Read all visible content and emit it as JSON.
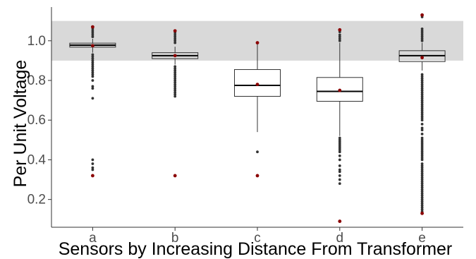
{
  "chart_data": {
    "type": "box",
    "title": "",
    "xlabel": "Sensors by Increasing Distance From Transformer",
    "ylabel": "Per Unit Voltage",
    "ylim": [
      0.06,
      1.17
    ],
    "yticks": [
      0.2,
      0.4,
      0.6,
      0.8,
      1.0
    ],
    "ytick_labels": [
      "0.2",
      "0.4",
      "0.6",
      "0.8",
      "1.0"
    ],
    "grid": false,
    "acceptable_band": {
      "ymin": 0.9,
      "ymax": 1.1,
      "color": "#d9d9d9"
    },
    "mean_color": "#8b0000",
    "point_color": "#333333",
    "categories": [
      "a",
      "b",
      "c",
      "d",
      "e"
    ],
    "boxes": [
      {
        "category": "a",
        "q1": 0.968,
        "median": 0.978,
        "q3": 0.988,
        "whisker_low": 0.94,
        "whisker_high": 1.01,
        "mean": 0.975,
        "min": 0.32,
        "max": 1.07,
        "outliers": [
          1.07,
          1.06,
          1.05,
          1.04,
          1.03,
          1.02,
          0.93,
          0.92,
          0.91,
          0.9,
          0.89,
          0.88,
          0.87,
          0.86,
          0.85,
          0.84,
          0.83,
          0.82,
          0.8,
          0.77,
          0.76,
          0.71,
          0.4,
          0.38,
          0.36,
          0.35,
          0.32
        ]
      },
      {
        "category": "b",
        "q1": 0.91,
        "median": 0.925,
        "q3": 0.94,
        "whisker_low": 0.88,
        "whisker_high": 0.97,
        "mean": 0.925,
        "min": 0.32,
        "max": 1.05,
        "outliers": [
          1.05,
          1.04,
          1.03,
          1.02,
          1.01,
          1.0,
          0.99,
          0.87,
          0.86,
          0.85,
          0.84,
          0.83,
          0.82,
          0.81,
          0.8,
          0.79,
          0.78,
          0.77,
          0.76,
          0.75,
          0.74,
          0.73,
          0.72,
          0.32
        ]
      },
      {
        "category": "c",
        "q1": 0.72,
        "median": 0.775,
        "q3": 0.855,
        "whisker_low": 0.54,
        "whisker_high": 0.99,
        "mean": 0.78,
        "min": 0.32,
        "max": 0.99,
        "outliers": [
          0.44,
          0.32
        ]
      },
      {
        "category": "d",
        "q1": 0.695,
        "median": 0.745,
        "q3": 0.815,
        "whisker_low": 0.52,
        "whisker_high": 0.99,
        "mean": 0.75,
        "min": 0.09,
        "max": 1.055,
        "outliers": [
          1.055,
          1.045,
          1.03,
          1.02,
          1.01,
          1.0,
          0.51,
          0.5,
          0.49,
          0.48,
          0.47,
          0.46,
          0.45,
          0.44,
          0.42,
          0.4,
          0.37,
          0.35,
          0.34,
          0.32,
          0.3,
          0.28,
          0.09
        ]
      },
      {
        "category": "e",
        "q1": 0.895,
        "median": 0.925,
        "q3": 0.95,
        "whisker_low": 0.85,
        "whisker_high": 0.99,
        "mean": 0.915,
        "min": 0.13,
        "max": 1.13,
        "outliers": [
          1.13,
          1.12,
          1.06,
          1.05,
          1.04,
          1.03,
          1.02,
          1.01,
          1.0,
          0.83,
          0.82,
          0.81,
          0.8,
          0.79,
          0.78,
          0.77,
          0.76,
          0.75,
          0.74,
          0.73,
          0.72,
          0.71,
          0.7,
          0.69,
          0.68,
          0.67,
          0.66,
          0.65,
          0.64,
          0.63,
          0.62,
          0.61,
          0.6,
          0.58,
          0.56,
          0.55,
          0.53,
          0.51,
          0.5,
          0.49,
          0.48,
          0.47,
          0.46,
          0.45,
          0.44,
          0.43,
          0.42,
          0.41,
          0.4,
          0.38,
          0.37,
          0.36,
          0.35,
          0.34,
          0.33,
          0.32,
          0.31,
          0.3,
          0.29,
          0.28,
          0.27,
          0.26,
          0.25,
          0.24,
          0.23,
          0.22,
          0.21,
          0.2,
          0.19,
          0.18,
          0.17,
          0.16,
          0.15,
          0.14,
          0.13
        ]
      }
    ]
  }
}
